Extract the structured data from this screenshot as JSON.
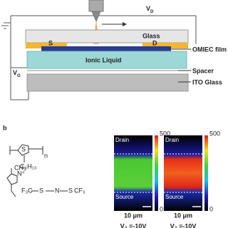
{
  "panel_a": {
    "vd": {
      "main": "V",
      "sub": "D"
    },
    "vg": {
      "main": "V",
      "sub": "G"
    },
    "glass": "Glass",
    "source": "S",
    "drain": "D",
    "omiec": "OMIEC film",
    "ionic": "Ionic Liquid",
    "spacer": "Spacer",
    "ito": "ITO Glass"
  },
  "panel_b": {
    "label": "b",
    "polymer": {
      "s": "S",
      "n": "n",
      "side": "C₆H₁₃"
    },
    "salt": {
      "n_plus": "N⁺",
      "ch3": "CH₃",
      "cf3_left": "F₃C",
      "s1": "S",
      "n_minus": "N",
      "s2": "S",
      "cf3_right": "CF₃"
    },
    "images": [
      {
        "drain": "Drain",
        "source": "Source",
        "scale_max": "500",
        "scale_min": "0",
        "scale_bar": "10 μm",
        "bias": "V₂ =-10V"
      },
      {
        "drain": "Drain",
        "source": "Source",
        "scale_max": "500",
        "scale_min": "0",
        "scale_bar": "10 μm",
        "bias": "V₂ =-10V"
      }
    ]
  }
}
